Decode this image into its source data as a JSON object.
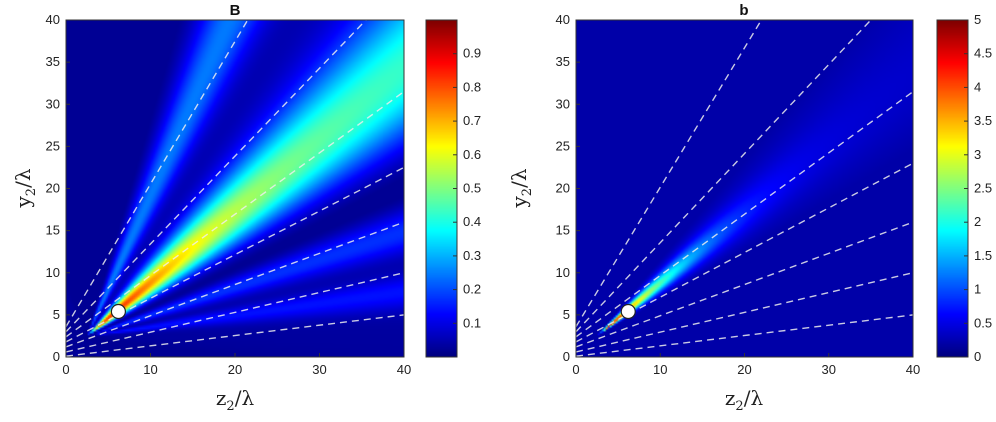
{
  "chart_data": [
    {
      "type": "heatmap",
      "title": "B",
      "xlabel": "z2/λ",
      "ylabel": "y2/λ",
      "xlabel_main": "z",
      "xlabel_sub": "2",
      "xlabel_rest": "/λ",
      "ylabel_main": "y",
      "ylabel_sub": "2",
      "ylabel_rest": "/λ",
      "xlim": [
        0,
        40
      ],
      "ylim": [
        0,
        40
      ],
      "x_ticks": [
        0,
        10,
        20,
        30,
        40
      ],
      "y_ticks": [
        0,
        5,
        10,
        15,
        20,
        25,
        30,
        35,
        40
      ],
      "colorbar": {
        "min": 0,
        "max": 1,
        "ticks": [
          0.1,
          0.2,
          0.3,
          0.4,
          0.5,
          0.6,
          0.7,
          0.8,
          0.9
        ]
      },
      "colormap": "jet",
      "source_point": {
        "x": 6.2,
        "y": 5.4
      },
      "dashed_lines": [
        {
          "x0": 0,
          "y0": 3.6,
          "x1": 21.5,
          "y1": 40
        },
        {
          "x0": 0,
          "y0": 3.0,
          "x1": 35.5,
          "y1": 40
        },
        {
          "x0": 0,
          "y0": 2.4,
          "x1": 40,
          "y1": 31.5
        },
        {
          "x0": 0,
          "y0": 1.8,
          "x1": 40,
          "y1": 22.5
        },
        {
          "x0": 0,
          "y0": 1.2,
          "x1": 40,
          "y1": 16
        },
        {
          "x0": 0,
          "y0": 0.6,
          "x1": 40,
          "y1": 10
        },
        {
          "x0": 0,
          "y0": 0.1,
          "x1": 40,
          "y1": 5
        }
      ]
    },
    {
      "type": "heatmap",
      "title": "b",
      "xlabel": "z2/λ",
      "ylabel": "y2/λ",
      "xlabel_main": "z",
      "xlabel_sub": "2",
      "xlabel_rest": "/λ",
      "ylabel_main": "y",
      "ylabel_sub": "2",
      "ylabel_rest": "/λ",
      "xlim": [
        0,
        40
      ],
      "ylim": [
        0,
        40
      ],
      "x_ticks": [
        0,
        10,
        20,
        30,
        40
      ],
      "y_ticks": [
        0,
        5,
        10,
        15,
        20,
        25,
        30,
        35,
        40
      ],
      "colorbar": {
        "min": 0,
        "max": 5,
        "ticks": [
          0,
          0.5,
          1,
          1.5,
          2,
          2.5,
          3,
          3.5,
          4,
          4.5,
          5
        ]
      },
      "colormap": "jet",
      "source_point": {
        "x": 6.2,
        "y": 5.4
      },
      "dashed_lines": [
        {
          "x0": 0,
          "y0": 3.6,
          "x1": 22,
          "y1": 40
        },
        {
          "x0": 0,
          "y0": 3.0,
          "x1": 35,
          "y1": 40
        },
        {
          "x0": 0,
          "y0": 2.4,
          "x1": 40,
          "y1": 31.5
        },
        {
          "x0": 0,
          "y0": 1.8,
          "x1": 40,
          "y1": 23
        },
        {
          "x0": 0,
          "y0": 1.2,
          "x1": 40,
          "y1": 16
        },
        {
          "x0": 0,
          "y0": 0.6,
          "x1": 40,
          "y1": 10
        },
        {
          "x0": 0,
          "y0": 0.1,
          "x1": 40,
          "y1": 5
        }
      ]
    }
  ]
}
